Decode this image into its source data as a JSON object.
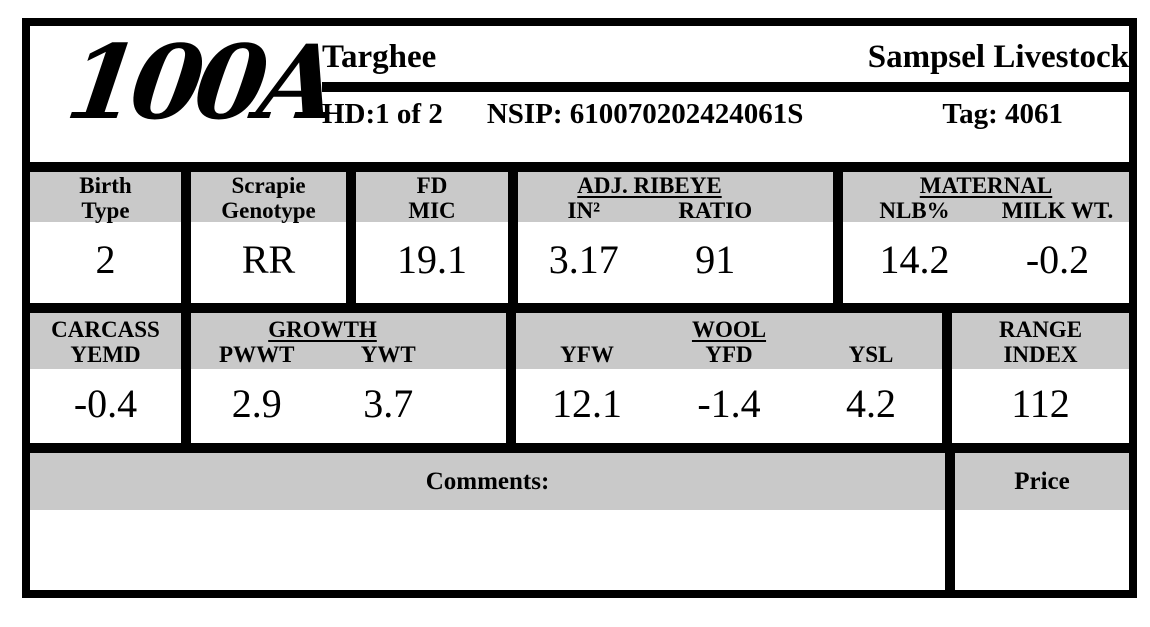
{
  "header": {
    "animal_id": "100A",
    "breed": "Targhee",
    "company": "Sampsel Livestock",
    "hd": "HD:1 of 2",
    "nsip": "NSIP: 610070202424061S",
    "tag": "Tag: 4061"
  },
  "stats_row1": {
    "birth_type": {
      "label1": "Birth",
      "label2": "Type",
      "value": "2"
    },
    "scrapie": {
      "label1": "Scrapie",
      "label2": "Genotype",
      "value": "RR"
    },
    "fd_mic": {
      "label1": "FD",
      "label2": "MIC",
      "value": "19.1"
    },
    "adj_ribeye": {
      "title": "ADJ. RIBEYE",
      "in2_label": "IN²",
      "in2_value": "3.17",
      "ratio_label": "RATIO",
      "ratio_value": "91"
    },
    "maternal": {
      "title": "MATERNAL",
      "nlb_label": "NLB%",
      "nlb_value": "14.2",
      "milk_label": "MILK WT.",
      "milk_value": "-0.2"
    }
  },
  "stats_row2": {
    "carcass": {
      "label1": "CARCASS",
      "label2": "YEMD",
      "value": "-0.4"
    },
    "growth": {
      "title": "GROWTH",
      "pwwt_label": "PWWT",
      "pwwt_value": "2.9",
      "ywt_label": "YWT",
      "ywt_value": "3.7"
    },
    "wool": {
      "title": "WOOL",
      "yfw_label": "YFW",
      "yfw_value": "12.1",
      "yfd_label": "YFD",
      "yfd_value": "-1.4",
      "ysl_label": "YSL",
      "ysl_value": "4.2"
    },
    "range_index": {
      "label1": "RANGE",
      "label2": "INDEX",
      "value": "112"
    }
  },
  "footer": {
    "comments_label": "Comments:",
    "comments_value": "",
    "price_label": "Price",
    "price_value": ""
  },
  "colors": {
    "border": "#000000",
    "header_band": "#c9c9c9",
    "background": "#ffffff",
    "text": "#000000"
  }
}
